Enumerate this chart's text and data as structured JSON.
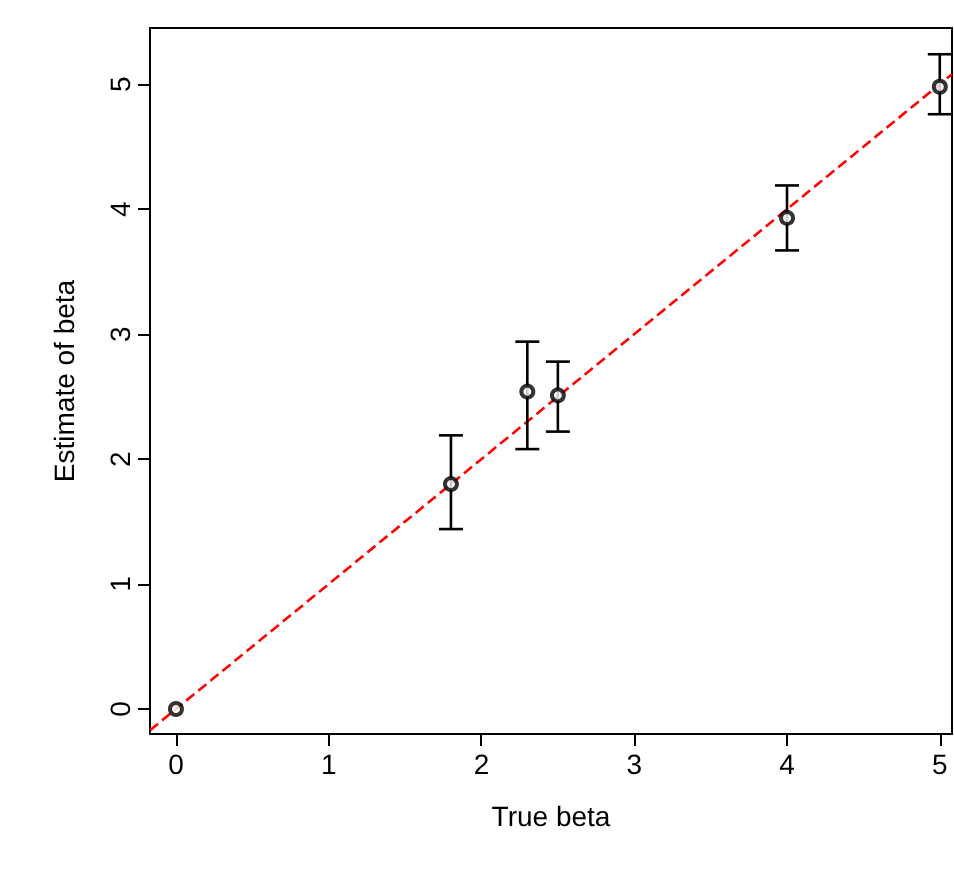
{
  "chart_data": {
    "type": "scatter",
    "xlabel": "True beta",
    "ylabel": "Estimate of beta",
    "xlim": [
      -0.17,
      5.08
    ],
    "ylim": [
      -0.2,
      5.45
    ],
    "xticks": [
      0,
      1,
      2,
      3,
      4,
      5
    ],
    "yticks": [
      0,
      1,
      2,
      3,
      4,
      5
    ],
    "grid": false,
    "marker": "circle",
    "series": [
      {
        "color": "#000000",
        "x": [
          0,
          1.8,
          2.3,
          2.5,
          4,
          5
        ],
        "values": [
          0,
          1.8,
          2.54,
          2.51,
          3.93,
          4.98
        ],
        "errors": [
          null,
          [
            1.44,
            2.19
          ],
          [
            2.08,
            2.94
          ],
          [
            2.22,
            2.78
          ],
          [
            3.67,
            4.19
          ],
          [
            4.76,
            5.24
          ]
        ]
      },
      {
        "type": "line",
        "color": "#ff0000",
        "line_style": "dashed",
        "marker": "none",
        "x": [
          -0.17,
          5.08
        ],
        "values": [
          -0.17,
          5.08
        ]
      }
    ]
  }
}
